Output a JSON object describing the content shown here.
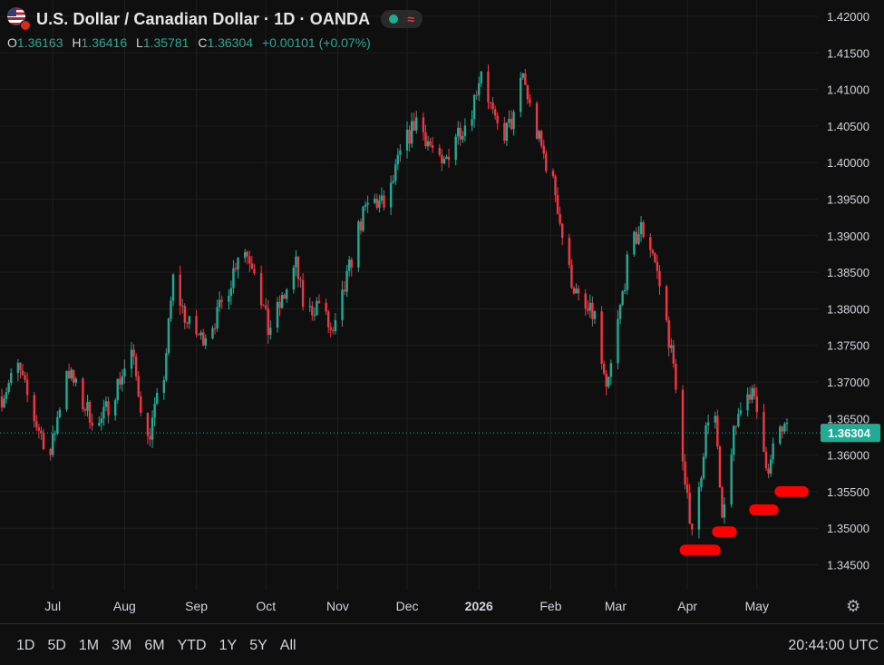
{
  "header": {
    "title": "U.S. Dollar / Canadian Dollar · 1D · OANDA",
    "ohlc": {
      "o_label": "O",
      "o": "1.36163",
      "h_label": "H",
      "h": "1.36416",
      "l_label": "L",
      "l": "1.35781",
      "c_label": "C",
      "c": "1.36304",
      "change": "+0.00101 (+0.07%)"
    }
  },
  "price_label": "1.36304",
  "range_buttons": [
    "1D",
    "5D",
    "1M",
    "3M",
    "6M",
    "YTD",
    "1Y",
    "5Y",
    "All"
  ],
  "clock": "20:44:00 UTC",
  "colors": {
    "up": "#22ab94",
    "down": "#f23645",
    "marker": "#ff0000",
    "price_label_bg": "#22ab94",
    "grid": "#1e1e1e"
  },
  "chart_data": {
    "type": "candlestick",
    "ylim": [
      1.3415,
      1.4225
    ],
    "yticks": [
      "1.42000",
      "1.41500",
      "1.41000",
      "1.40500",
      "1.40000",
      "1.39500",
      "1.39000",
      "1.38500",
      "1.38000",
      "1.37500",
      "1.37000",
      "1.36500",
      "1.36000",
      "1.35500",
      "1.35000",
      "1.34500"
    ],
    "xticks": [
      {
        "label": "Jul",
        "date": "2025-07-01"
      },
      {
        "label": "Aug",
        "date": "2025-08-01"
      },
      {
        "label": "Sep",
        "date": "2025-09-01"
      },
      {
        "label": "Oct",
        "date": "2025-10-01"
      },
      {
        "label": "Nov",
        "date": "2025-11-01"
      },
      {
        "label": "Dec",
        "date": "2025-12-01"
      },
      {
        "label": "2026",
        "date": "2026-01-01",
        "bold": true
      },
      {
        "label": "Feb",
        "date": "2026-02-01"
      },
      {
        "label": "Mar",
        "date": "2026-03-01"
      },
      {
        "label": "Apr",
        "date": "2026-04-01"
      },
      {
        "label": "May",
        "date": "2026-05-01"
      }
    ],
    "x_start": "2025-06-09",
    "x_end": "2026-05-14",
    "last_close": 1.36304,
    "close_path": [
      [
        "2025-06-09",
        1.368
      ],
      [
        "2025-06-16",
        1.372
      ],
      [
        "2025-06-23",
        1.365
      ],
      [
        "2025-06-30",
        1.36
      ],
      [
        "2025-07-07",
        1.372
      ],
      [
        "2025-07-14",
        1.367
      ],
      [
        "2025-07-21",
        1.364
      ],
      [
        "2025-07-28",
        1.369
      ],
      [
        "2025-08-04",
        1.374
      ],
      [
        "2025-08-11",
        1.362
      ],
      [
        "2025-08-18",
        1.371
      ],
      [
        "2025-08-22",
        1.384
      ],
      [
        "2025-08-28",
        1.378
      ],
      [
        "2025-09-03",
        1.376
      ],
      [
        "2025-09-10",
        1.379
      ],
      [
        "2025-09-16",
        1.384
      ],
      [
        "2025-09-20",
        1.389
      ],
      [
        "2025-09-26",
        1.386
      ],
      [
        "2025-10-02",
        1.377
      ],
      [
        "2025-10-08",
        1.381
      ],
      [
        "2025-10-14",
        1.386
      ],
      [
        "2025-10-18",
        1.379
      ],
      [
        "2025-10-24",
        1.381
      ],
      [
        "2025-10-30",
        1.376
      ],
      [
        "2025-11-05",
        1.384
      ],
      [
        "2025-11-10",
        1.391
      ],
      [
        "2025-11-15",
        1.395
      ],
      [
        "2025-11-22",
        1.394
      ],
      [
        "2025-11-28",
        1.401
      ],
      [
        "2025-12-05",
        1.406
      ],
      [
        "2025-12-10",
        1.403
      ],
      [
        "2025-12-16",
        1.399
      ],
      [
        "2025-12-22",
        1.404
      ],
      [
        "2025-12-28",
        1.406
      ],
      [
        "2026-01-02",
        1.413
      ],
      [
        "2026-01-08",
        1.405
      ],
      [
        "2026-01-12",
        1.404
      ],
      [
        "2026-01-16",
        1.406
      ],
      [
        "2026-01-20",
        1.412
      ],
      [
        "2026-01-24",
        1.406
      ],
      [
        "2026-01-28",
        1.402
      ],
      [
        "2026-02-03",
        1.396
      ],
      [
        "2026-02-08",
        1.386
      ],
      [
        "2026-02-14",
        1.38
      ],
      [
        "2026-02-20",
        1.379
      ],
      [
        "2026-02-25",
        1.368
      ],
      [
        "2026-03-02",
        1.378
      ],
      [
        "2026-03-07",
        1.388
      ],
      [
        "2026-03-12",
        1.391
      ],
      [
        "2026-03-17",
        1.388
      ],
      [
        "2026-03-22",
        1.38
      ],
      [
        "2026-03-27",
        1.37
      ],
      [
        "2026-03-31",
        1.355
      ],
      [
        "2026-04-04",
        1.349
      ],
      [
        "2026-04-08",
        1.361
      ],
      [
        "2026-04-12",
        1.37
      ],
      [
        "2026-04-16",
        1.35
      ],
      [
        "2026-04-20",
        1.361
      ],
      [
        "2026-04-24",
        1.367
      ],
      [
        "2026-04-28",
        1.369
      ],
      [
        "2026-05-03",
        1.364
      ],
      [
        "2026-05-06",
        1.357
      ],
      [
        "2026-05-10",
        1.364
      ],
      [
        "2026-05-14",
        1.363
      ]
    ],
    "markers": [
      {
        "date_from": "2026-03-31",
        "date_to": "2026-04-13",
        "y": 1.347
      },
      {
        "date_from": "2026-04-14",
        "date_to": "2026-04-20",
        "y": 1.3495
      },
      {
        "date_from": "2026-04-30",
        "date_to": "2026-05-08",
        "y": 1.3525
      },
      {
        "date_from": "2026-05-11",
        "date_to": "2026-05-21",
        "y": 1.355
      }
    ]
  }
}
